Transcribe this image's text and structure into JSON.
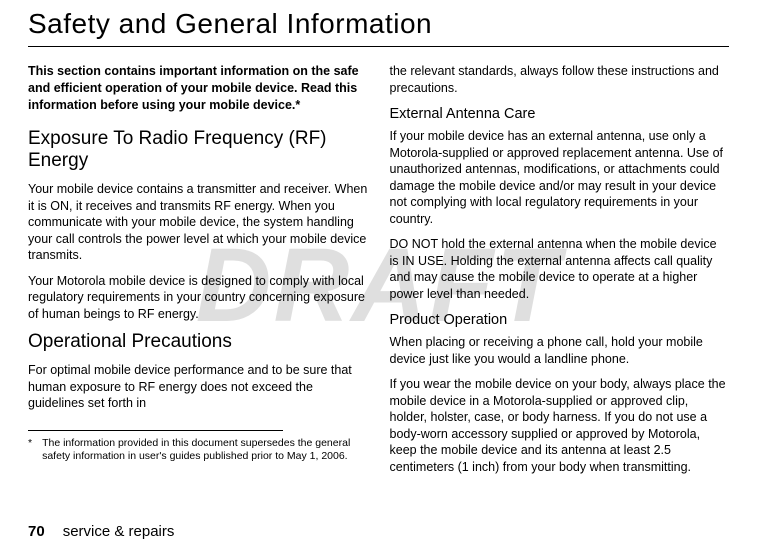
{
  "watermark": "DRAFT",
  "mainTitle": "Safety and General Information",
  "leftCol": {
    "intro": "This section contains important information on the safe and efficient operation of your mobile device. Read this information before using your mobile device.*",
    "h2a": "Exposure To Radio Frequency (RF) Energy",
    "p1": "Your mobile device contains a transmitter and receiver. When it is ON, it receives and transmits RF energy. When you communicate with your mobile device, the system handling your call controls the power level at which your mobile device transmits.",
    "p2": "Your Motorola mobile device is designed to comply with local regulatory requirements in your country concerning exposure of human beings to RF energy.",
    "h2b": "Operational Precautions",
    "p3": "For optimal mobile device performance and to be sure that human exposure to RF energy does not exceed the guidelines set forth in",
    "footnoteMarker": "*",
    "footnoteText": "The information provided in this document supersedes the general safety information in user's guides published prior to May 1, 2006."
  },
  "rightCol": {
    "p1": "the relevant standards, always follow these instructions and precautions.",
    "h3a": "External Antenna Care",
    "p2": "If your mobile device has an external antenna, use only a Motorola-supplied or approved replacement antenna. Use of unauthorized antennas, modifications, or attachments could damage the mobile device and/or may result in your device not complying with local regulatory requirements in your country.",
    "p3": "DO NOT hold the external antenna when the mobile device is IN USE. Holding the external antenna affects call quality and may cause the mobile device to operate at a higher power level than needed.",
    "h3b": "Product Operation",
    "p4": "When placing or receiving a phone call, hold your mobile device just like you would a landline phone.",
    "p5": "If you wear the mobile device on your body, always place the mobile device in a Motorola-supplied or approved clip, holder, holster, case, or body harness. If you do not use a body-worn accessory supplied or approved by Motorola, keep the mobile device and its antenna at least 2.5 centimeters (1 inch) from your body when transmitting."
  },
  "footer": {
    "pageNum": "70",
    "section": "service & repairs"
  }
}
